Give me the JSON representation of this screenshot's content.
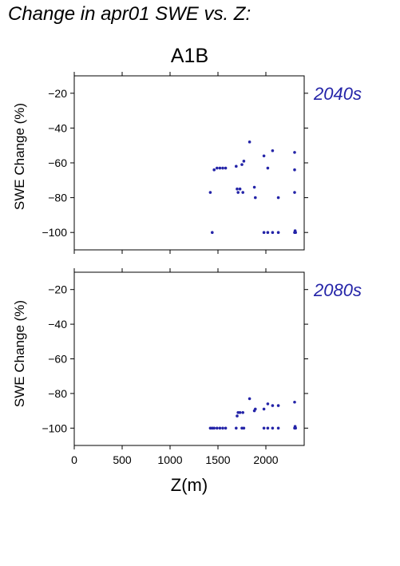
{
  "figure": {
    "title": "Change in apr01 SWE vs. Z:",
    "scenario": "A1B"
  },
  "chart_data": [
    {
      "type": "scatter",
      "panel_label": "2040s",
      "xlabel": "",
      "ylabel": "SWE Change (%)",
      "xlim": [
        0,
        2400
      ],
      "ylim": [
        -110,
        -10
      ],
      "x_ticks": [
        0,
        500,
        1000,
        1500,
        2000
      ],
      "x_tick_labels_shown": false,
      "y_ticks": [
        -20,
        -40,
        -60,
        -80,
        -100
      ],
      "y_tick_labels": [
        "−20",
        "−40",
        "−60",
        "−80",
        "−100"
      ],
      "grid": false,
      "point_color": "#2424a8",
      "points": [
        {
          "x": 1420,
          "y": -77
        },
        {
          "x": 1440,
          "y": -100
        },
        {
          "x": 1460,
          "y": -64
        },
        {
          "x": 1490,
          "y": -63
        },
        {
          "x": 1520,
          "y": -63
        },
        {
          "x": 1550,
          "y": -63
        },
        {
          "x": 1580,
          "y": -63
        },
        {
          "x": 1690,
          "y": -62
        },
        {
          "x": 1700,
          "y": -75
        },
        {
          "x": 1710,
          "y": -77
        },
        {
          "x": 1730,
          "y": -75
        },
        {
          "x": 1750,
          "y": -61
        },
        {
          "x": 1760,
          "y": -77
        },
        {
          "x": 1770,
          "y": -59
        },
        {
          "x": 1830,
          "y": -48
        },
        {
          "x": 1880,
          "y": -74
        },
        {
          "x": 1890,
          "y": -80
        },
        {
          "x": 1980,
          "y": -56
        },
        {
          "x": 1980,
          "y": -100
        },
        {
          "x": 2020,
          "y": -63
        },
        {
          "x": 2020,
          "y": -100
        },
        {
          "x": 2070,
          "y": -53
        },
        {
          "x": 2070,
          "y": -100
        },
        {
          "x": 2130,
          "y": -80
        },
        {
          "x": 2130,
          "y": -100
        },
        {
          "x": 2300,
          "y": -54
        },
        {
          "x": 2300,
          "y": -64
        },
        {
          "x": 2300,
          "y": -77
        },
        {
          "x": 2300,
          "y": -100
        },
        {
          "x": 2305,
          "y": -99
        },
        {
          "x": 2310,
          "y": -100
        }
      ]
    },
    {
      "type": "scatter",
      "panel_label": "2080s",
      "xlabel": "Z(m)",
      "ylabel": "SWE Change (%)",
      "xlim": [
        0,
        2400
      ],
      "ylim": [
        -110,
        -10
      ],
      "x_ticks": [
        0,
        500,
        1000,
        1500,
        2000
      ],
      "x_tick_labels": [
        "0",
        "500",
        "1000",
        "1500",
        "2000"
      ],
      "y_ticks": [
        -20,
        -40,
        -60,
        -80,
        -100
      ],
      "y_tick_labels": [
        "−20",
        "−40",
        "−60",
        "−80",
        "−100"
      ],
      "grid": false,
      "point_color": "#2424a8",
      "points": [
        {
          "x": 1420,
          "y": -100
        },
        {
          "x": 1440,
          "y": -100
        },
        {
          "x": 1460,
          "y": -100
        },
        {
          "x": 1490,
          "y": -100
        },
        {
          "x": 1520,
          "y": -100
        },
        {
          "x": 1550,
          "y": -100
        },
        {
          "x": 1580,
          "y": -100
        },
        {
          "x": 1690,
          "y": -100
        },
        {
          "x": 1700,
          "y": -93
        },
        {
          "x": 1710,
          "y": -91
        },
        {
          "x": 1730,
          "y": -91
        },
        {
          "x": 1750,
          "y": -100
        },
        {
          "x": 1760,
          "y": -91
        },
        {
          "x": 1770,
          "y": -100
        },
        {
          "x": 1830,
          "y": -83
        },
        {
          "x": 1880,
          "y": -90
        },
        {
          "x": 1890,
          "y": -89
        },
        {
          "x": 1980,
          "y": -100
        },
        {
          "x": 1980,
          "y": -89
        },
        {
          "x": 2020,
          "y": -86
        },
        {
          "x": 2020,
          "y": -100
        },
        {
          "x": 2070,
          "y": -87
        },
        {
          "x": 2070,
          "y": -100
        },
        {
          "x": 2130,
          "y": -87
        },
        {
          "x": 2130,
          "y": -100
        },
        {
          "x": 2300,
          "y": -85
        },
        {
          "x": 2300,
          "y": -100
        },
        {
          "x": 2305,
          "y": -99
        },
        {
          "x": 2310,
          "y": -100
        }
      ]
    }
  ]
}
